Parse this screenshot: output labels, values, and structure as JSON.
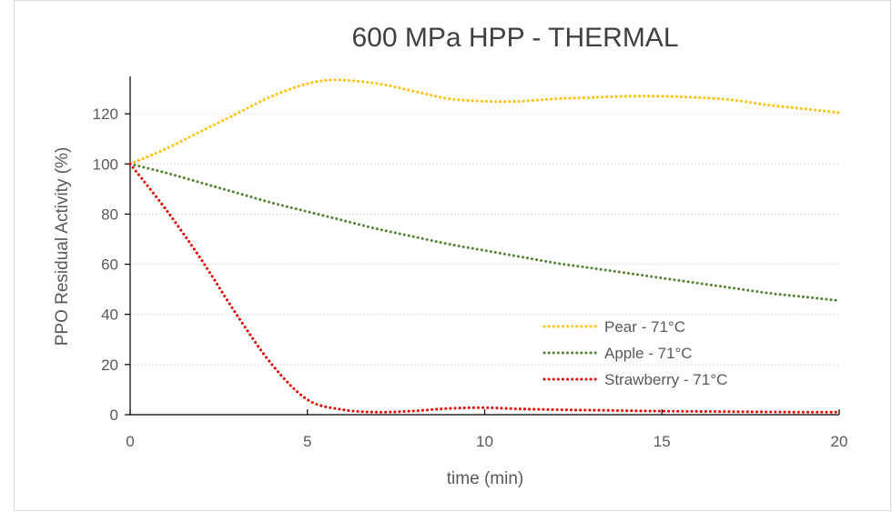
{
  "chart_data": {
    "type": "line",
    "title": "600 MPa HPP - THERMAL",
    "xlabel": "time (min)",
    "ylabel": "PPO Residual Activity (%)",
    "xlim": [
      0,
      20
    ],
    "ylim": [
      0,
      140
    ],
    "xticks": [
      0,
      5,
      10,
      15,
      20
    ],
    "yticks": [
      0,
      20,
      40,
      60,
      80,
      100,
      120
    ],
    "grid": true,
    "legend_position": "lower-right",
    "series": [
      {
        "name": "Pear - 71°C",
        "color": "#ffc000",
        "style": "dotted",
        "x": [
          0,
          1,
          2,
          3,
          4,
          5,
          5.8,
          7,
          8,
          9,
          10,
          11,
          12,
          13,
          14,
          15,
          16,
          17,
          18,
          19,
          20
        ],
        "y": [
          100,
          106,
          113,
          120,
          127,
          132,
          133.5,
          132,
          129,
          126,
          125,
          125,
          126,
          126.5,
          127,
          127,
          126.5,
          125.5,
          123.5,
          122,
          120.5
        ]
      },
      {
        "name": "Apple - 71°C",
        "color": "#548235",
        "style": "dotted",
        "x": [
          0,
          1,
          2,
          3,
          4,
          5,
          6,
          7,
          8,
          9,
          10,
          11,
          12,
          13,
          14,
          15,
          16,
          17,
          18,
          19,
          20
        ],
        "y": [
          100,
          96.5,
          92.5,
          88.5,
          84.5,
          81,
          77.5,
          74,
          71,
          68,
          65.5,
          63,
          60.5,
          58.5,
          56.5,
          54.5,
          52.5,
          50.5,
          48.5,
          47,
          45.5
        ]
      },
      {
        "name": "Strawberry - 71°C",
        "color": "#e00000",
        "style": "dotted",
        "x": [
          0,
          1,
          2,
          3,
          4,
          5,
          6,
          7,
          8,
          9,
          10,
          11,
          12,
          13,
          14,
          15,
          16,
          17,
          18,
          19,
          20
        ],
        "y": [
          100,
          82,
          62,
          40,
          20,
          6,
          2,
          1,
          1.5,
          2.5,
          2.8,
          2.3,
          2,
          1.8,
          1.6,
          1.4,
          1.3,
          1.2,
          1.1,
          1,
          1
        ]
      }
    ]
  }
}
